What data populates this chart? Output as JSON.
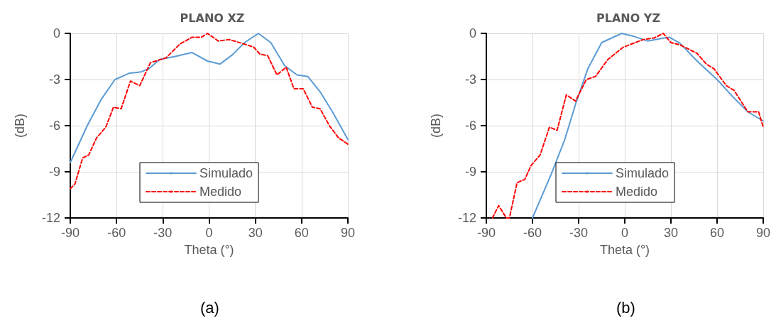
{
  "chart_data": [
    {
      "type": "line",
      "title": "PLANO XZ",
      "xlabel": "Theta (°)",
      "ylabel": "(dB)",
      "annotations": [
        "(a)"
      ],
      "xlim": [
        -90,
        90
      ],
      "xticks": [
        -90,
        -60,
        -30,
        0,
        30,
        60,
        90
      ],
      "ylim": [
        -12,
        0
      ],
      "yticks": [
        -12,
        -9,
        -6,
        -3,
        0
      ],
      "grid": true,
      "legend": "bottom",
      "marker": "none",
      "series": [
        {
          "name": "Simulado",
          "color": "#5b9bd5",
          "line_style": "solid",
          "x": [
            -90,
            -79,
            -70,
            -61,
            -52,
            -44,
            -39,
            -32,
            -22,
            -11,
            -1,
            7,
            15,
            23,
            32,
            40,
            49,
            57,
            64,
            72,
            80,
            90
          ],
          "values": [
            -8.4,
            -6,
            -4.3,
            -3,
            -2.6,
            -2.5,
            -2.3,
            -1.7,
            -1.5,
            -1.25,
            -1.8,
            -2,
            -1.4,
            -0.6,
            0,
            -0.6,
            -2.1,
            -2.7,
            -2.8,
            -3.8,
            -5.1,
            -6.9
          ]
        },
        {
          "name": "Medido",
          "color": "#ff0000",
          "line_style": "dashed",
          "x": [
            -90,
            -87,
            -82,
            -78,
            -73,
            -67,
            -62,
            -57,
            -51,
            -45,
            -38,
            -28,
            -19,
            -11,
            -5,
            -1,
            6,
            13,
            23,
            29,
            33,
            38,
            44,
            50,
            55,
            61,
            67,
            72,
            78,
            84,
            90
          ],
          "values": [
            -10.1,
            -9.8,
            -8.1,
            -7.9,
            -6.8,
            -6.1,
            -4.8,
            -4.9,
            -3.1,
            -3.4,
            -1.9,
            -1.6,
            -0.7,
            -0.25,
            -0.25,
            0,
            -0.5,
            -0.4,
            -0.7,
            -0.9,
            -1.35,
            -1.45,
            -2.7,
            -2.2,
            -3.6,
            -3.6,
            -4.8,
            -4.9,
            -6,
            -6.8,
            -7.2
          ]
        }
      ]
    },
    {
      "type": "line",
      "title": "PLANO YZ",
      "xlabel": "Theta (°)",
      "ylabel": "(dB)",
      "annotations": [
        "(b)"
      ],
      "xlim": [
        -90,
        90
      ],
      "xticks": [
        -90,
        -60,
        -30,
        0,
        30,
        60,
        90
      ],
      "ylim": [
        -12,
        0
      ],
      "yticks": [
        -12,
        -9,
        -6,
        -3,
        0
      ],
      "grid": true,
      "legend": "bottom",
      "marker": "none",
      "series": [
        {
          "name": "Simulado",
          "color": "#5b9bd5",
          "line_style": "solid",
          "x": [
            -60,
            -48,
            -39,
            -32,
            -24,
            -15,
            -2,
            6,
            15,
            23,
            29,
            36,
            47,
            60,
            70,
            80,
            90
          ],
          "values": [
            -12,
            -9.2,
            -6.9,
            -4.6,
            -2.3,
            -0.6,
            0,
            -0.2,
            -0.5,
            -0.35,
            -0.25,
            -0.65,
            -1.8,
            -3,
            -4.1,
            -5.1,
            -5.7
          ]
        },
        {
          "name": "Medido",
          "color": "#ff0000",
          "line_style": "dashed",
          "x": [
            -86,
            -82,
            -77,
            -75,
            -70,
            -65,
            -61,
            -55,
            -49,
            -44,
            -38,
            -32,
            -25,
            -19,
            -11,
            -1,
            12,
            19,
            25,
            30,
            36,
            47,
            53,
            58,
            66,
            71,
            80,
            87,
            90
          ],
          "values": [
            -12,
            -11.2,
            -12,
            -12,
            -9.7,
            -9.5,
            -8.6,
            -7.9,
            -6.1,
            -6.3,
            -4,
            -4.4,
            -3,
            -2.8,
            -1.7,
            -0.9,
            -0.4,
            -0.3,
            0,
            -0.6,
            -0.75,
            -1.3,
            -2,
            -2.3,
            -3.4,
            -3.7,
            -5.1,
            -5.1,
            -6.1
          ]
        }
      ]
    }
  ]
}
